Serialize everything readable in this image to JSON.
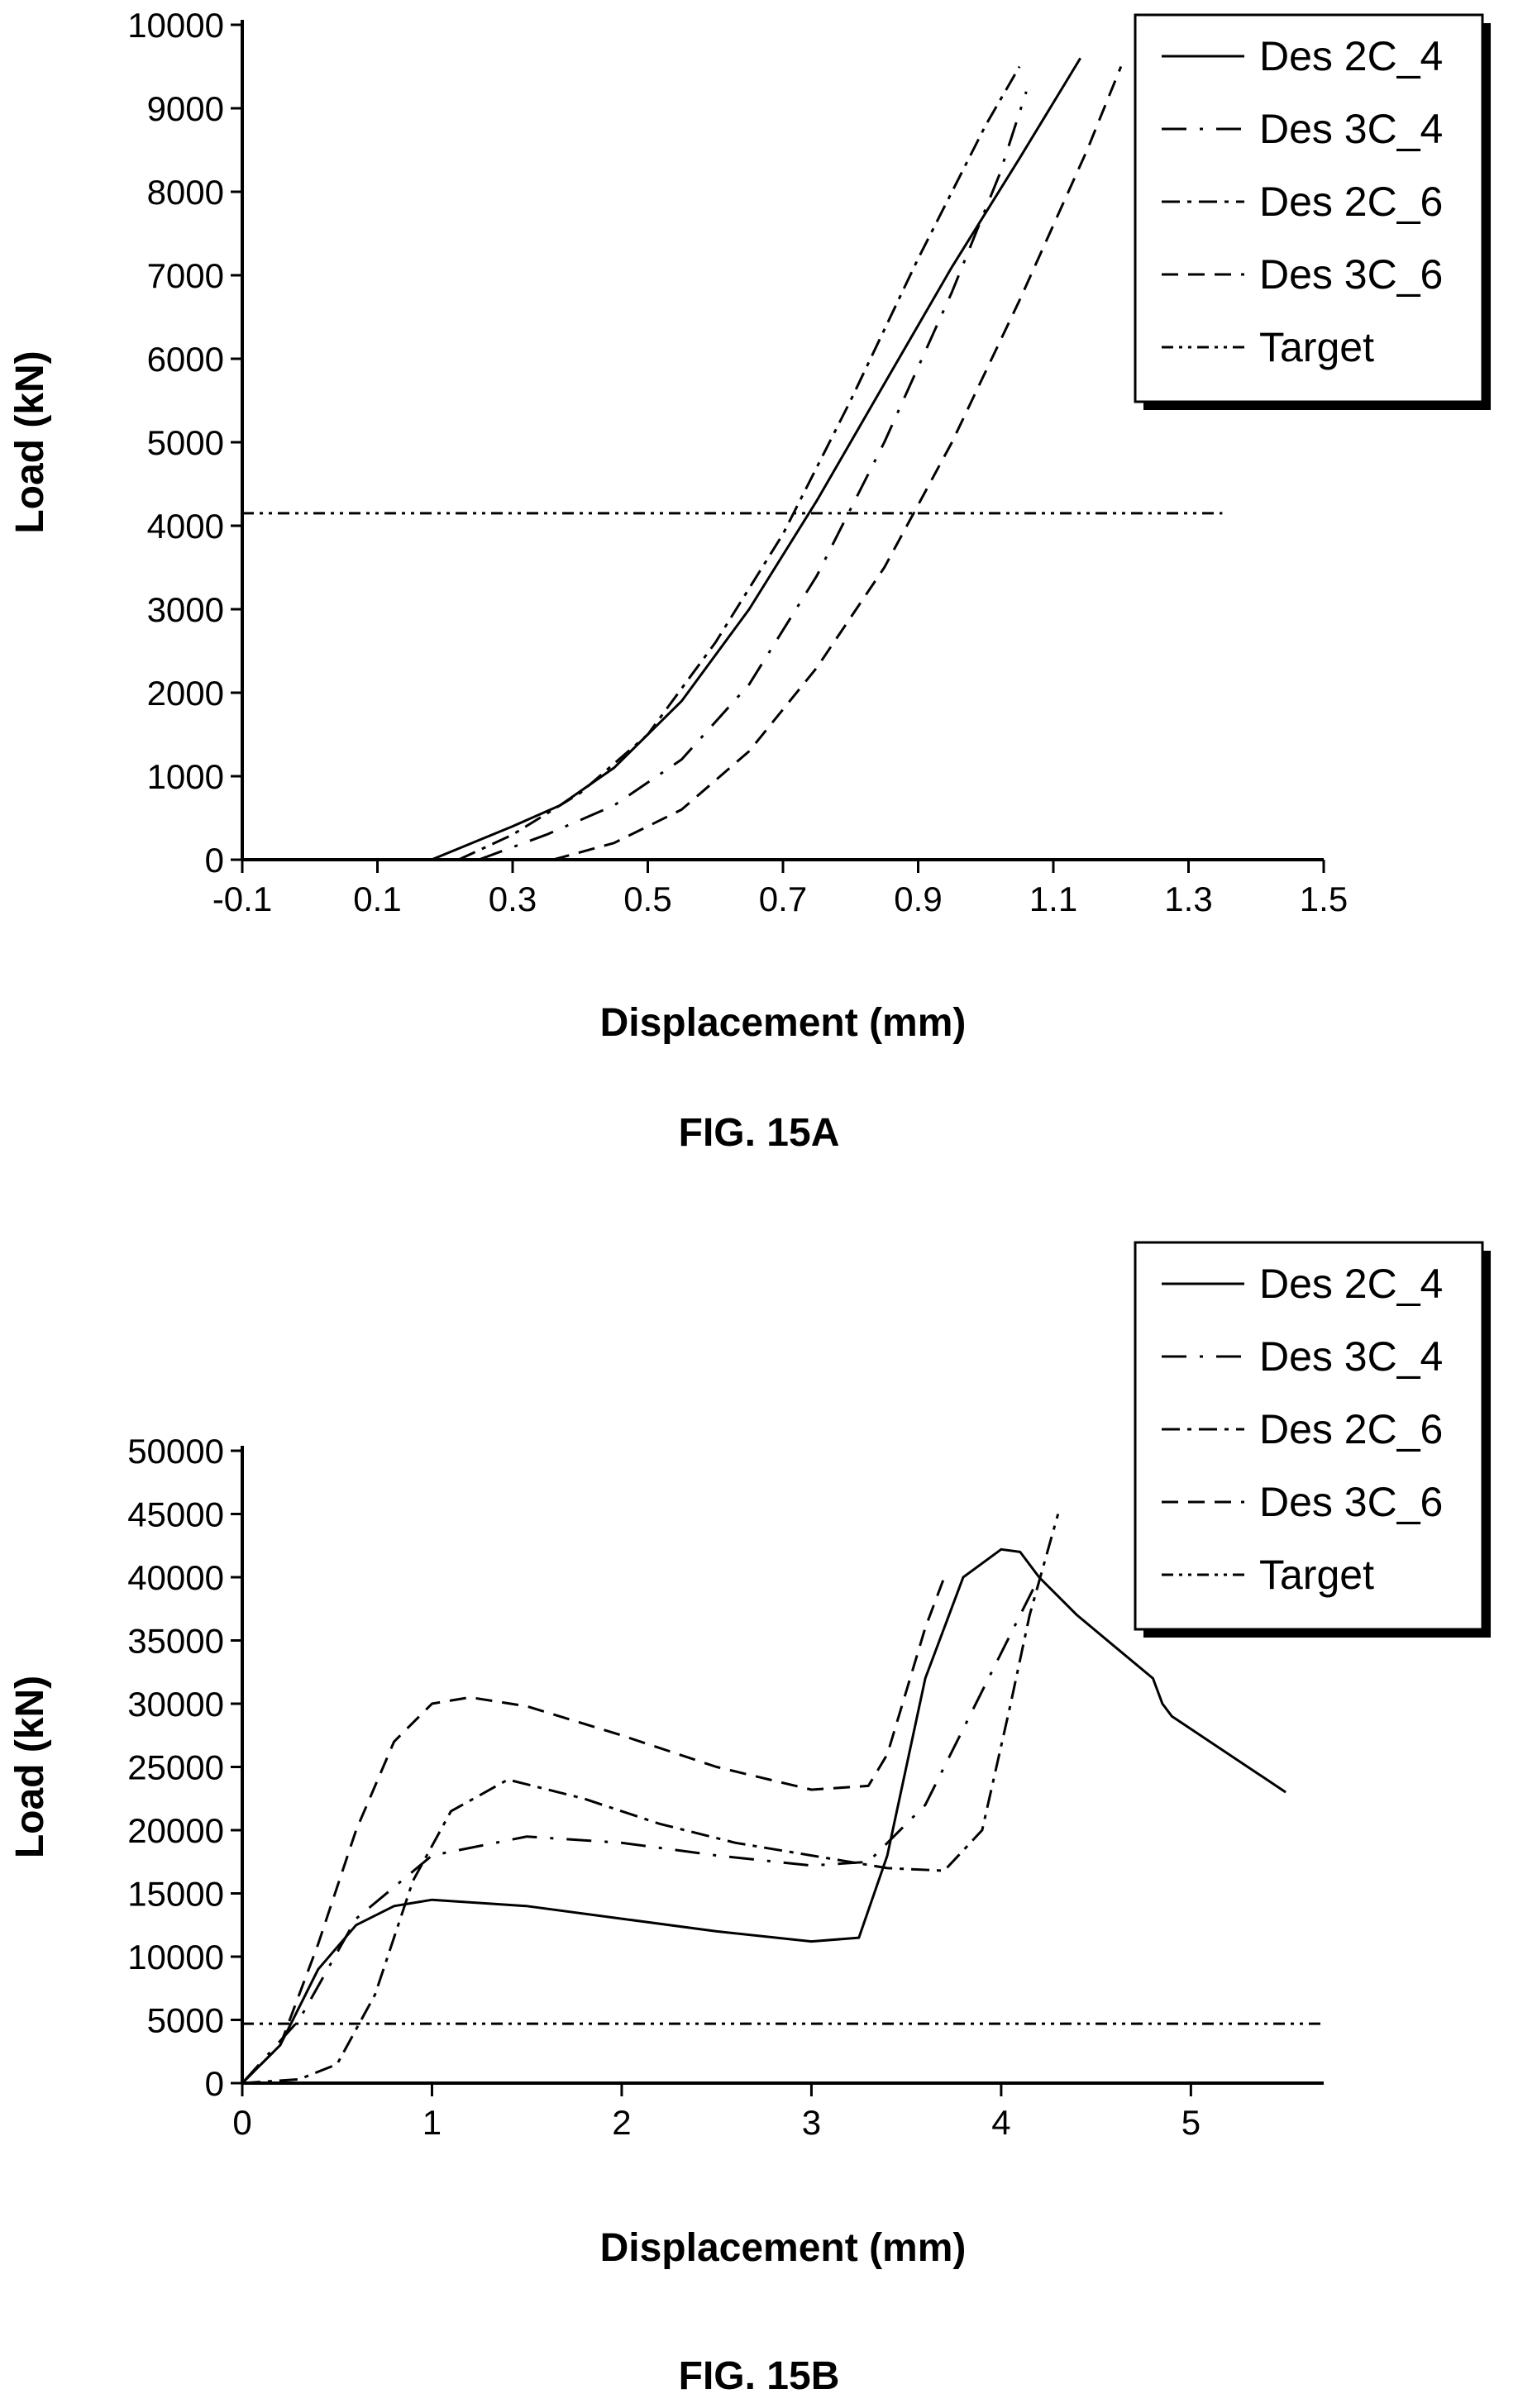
{
  "figures": [
    {
      "caption": "FIG. 15A"
    },
    {
      "caption": "FIG. 15B"
    }
  ],
  "chart_data": [
    {
      "type": "line",
      "title": "",
      "xlabel": "Displacement (mm)",
      "ylabel": "Load (kN)",
      "xlim": [
        -0.1,
        1.5
      ],
      "ylim": [
        0,
        10000
      ],
      "xticks": [
        "-0.1",
        "0.1",
        "0.3",
        "0.5",
        "0.7",
        "0.9",
        "1.1",
        "1.3",
        "1.5"
      ],
      "yticks": [
        "0",
        "1000",
        "2000",
        "3000",
        "4000",
        "5000",
        "6000",
        "7000",
        "8000",
        "9000",
        "10000"
      ],
      "grid": false,
      "legend": "top-right",
      "series": [
        {
          "name": "Des 2C_4",
          "dash": "solid",
          "x": [
            0.18,
            0.3,
            0.37,
            0.45,
            0.55,
            0.65,
            0.75,
            0.85,
            0.95,
            1.05,
            1.14
          ],
          "y": [
            0,
            400,
            650,
            1100,
            1900,
            3000,
            4300,
            5700,
            7100,
            8400,
            9600
          ]
        },
        {
          "name": "Des 3C_4",
          "dash": "dash-dot-sparse",
          "x": [
            0.25,
            0.35,
            0.45,
            0.55,
            0.65,
            0.75,
            0.85,
            0.95,
            1.02,
            1.06
          ],
          "y": [
            0,
            300,
            650,
            1200,
            2100,
            3400,
            5000,
            6800,
            8200,
            9200
          ]
        },
        {
          "name": "Des 2C_6",
          "dash": "dash-dot",
          "x": [
            0.22,
            0.3,
            0.4,
            0.5,
            0.6,
            0.7,
            0.8,
            0.9,
            1.0,
            1.05
          ],
          "y": [
            0,
            300,
            800,
            1500,
            2600,
            3900,
            5500,
            7200,
            8800,
            9500
          ]
        },
        {
          "name": "Des 3C_6",
          "dash": "dash",
          "x": [
            0.36,
            0.45,
            0.55,
            0.65,
            0.75,
            0.85,
            0.95,
            1.05,
            1.15,
            1.2
          ],
          "y": [
            0,
            200,
            600,
            1300,
            2300,
            3500,
            5000,
            6700,
            8500,
            9500
          ]
        },
        {
          "name": "Target",
          "dash": "dash-dot-dot",
          "x": [
            -0.1,
            1.35
          ],
          "y": [
            4150,
            4150
          ]
        }
      ]
    },
    {
      "type": "line",
      "title": "",
      "xlabel": "Displacement (mm)",
      "ylabel": "Load (kN)",
      "xlim": [
        0,
        5.7
      ],
      "ylim": [
        0,
        50000
      ],
      "xticks": [
        "0",
        "1",
        "2",
        "3",
        "4",
        "5"
      ],
      "yticks": [
        "0",
        "5000",
        "10000",
        "15000",
        "20000",
        "25000",
        "30000",
        "35000",
        "40000",
        "45000",
        "50000"
      ],
      "grid": false,
      "legend": "top-right",
      "series": [
        {
          "name": "Des 2C_4",
          "dash": "solid",
          "x": [
            0,
            0.2,
            0.4,
            0.6,
            0.8,
            1.0,
            1.5,
            2.0,
            2.5,
            3.0,
            3.25,
            3.4,
            3.6,
            3.8,
            4.0,
            4.1,
            4.2,
            4.4,
            4.6,
            4.8,
            4.85,
            4.9,
            5.2,
            5.5
          ],
          "y": [
            0,
            3000,
            9000,
            12500,
            14000,
            14500,
            14000,
            13000,
            12000,
            11200,
            11500,
            18000,
            32000,
            40000,
            42200,
            42000,
            40000,
            37000,
            34500,
            32000,
            30000,
            29000,
            26000,
            23000
          ]
        },
        {
          "name": "Des 3C_4",
          "dash": "dash-dot-sparse",
          "x": [
            0,
            0.3,
            0.6,
            1.0,
            1.5,
            2.0,
            2.5,
            3.0,
            3.3,
            3.6,
            3.9,
            4.1,
            4.2
          ],
          "y": [
            0,
            5000,
            13000,
            18000,
            19500,
            19000,
            18000,
            17200,
            17500,
            22000,
            31000,
            37000,
            40000
          ]
        },
        {
          "name": "Des 2C_6",
          "dash": "dash-dot",
          "x": [
            0,
            0.3,
            0.5,
            0.7,
            0.9,
            1.1,
            1.4,
            1.8,
            2.2,
            2.6,
            3.0,
            3.4,
            3.7,
            3.9,
            4.05,
            4.15,
            4.3
          ],
          "y": [
            0,
            300,
            1500,
            7000,
            16000,
            21500,
            24000,
            22500,
            20500,
            19000,
            18000,
            17000,
            16800,
            20000,
            30000,
            37000,
            45000
          ]
        },
        {
          "name": "Des 3C_6",
          "dash": "dash",
          "x": [
            0,
            0.2,
            0.4,
            0.6,
            0.8,
            1.0,
            1.2,
            1.5,
            2.0,
            2.5,
            3.0,
            3.3,
            3.4,
            3.5,
            3.6,
            3.7
          ],
          "y": [
            0,
            3000,
            11000,
            20000,
            27000,
            30000,
            30500,
            29800,
            27500,
            25000,
            23200,
            23500,
            26000,
            31000,
            36000,
            40000
          ]
        },
        {
          "name": "Target",
          "dash": "dash-dot-dot",
          "x": [
            0,
            5.7
          ],
          "y": [
            4700,
            4700
          ]
        }
      ]
    }
  ]
}
